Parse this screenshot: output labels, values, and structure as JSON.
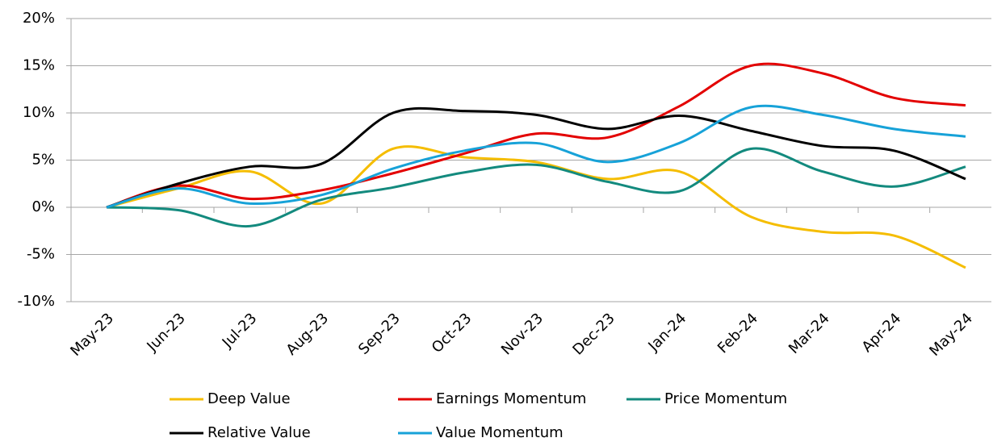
{
  "chart_data": {
    "type": "line",
    "categories": [
      "May-23",
      "Jun-23",
      "Jul-23",
      "Aug-23",
      "Sep-23",
      "Oct-23",
      "Nov-23",
      "Dec-23",
      "Jan-24",
      "Feb-24",
      "Mar-24",
      "Apr-24",
      "May-24"
    ],
    "series": [
      {
        "name": "Deep Value",
        "color": "#f5bd00",
        "values": [
          0,
          2.0,
          3.8,
          0.4,
          6.2,
          5.3,
          4.8,
          3.0,
          3.8,
          -1.0,
          -2.6,
          -3.0,
          -6.4
        ]
      },
      {
        "name": "Earnings Momentum",
        "color": "#e30000",
        "values": [
          0,
          2.3,
          0.9,
          1.8,
          3.6,
          5.7,
          7.8,
          7.4,
          10.7,
          15.0,
          14.2,
          11.6,
          10.8
        ]
      },
      {
        "name": "Price Momentum",
        "color": "#138a7e",
        "values": [
          0,
          -0.3,
          -2.0,
          0.8,
          2.1,
          3.7,
          4.5,
          2.7,
          1.7,
          6.2,
          3.8,
          2.2,
          4.3
        ]
      },
      {
        "name": "Relative Value",
        "color": "#000000",
        "values": [
          0,
          2.5,
          4.3,
          4.6,
          10.0,
          10.2,
          9.8,
          8.3,
          9.7,
          8.1,
          6.5,
          6.0,
          3.0
        ]
      },
      {
        "name": "Value Momentum",
        "color": "#17a2d8",
        "values": [
          0,
          2.0,
          0.4,
          1.3,
          4.1,
          6.0,
          6.8,
          4.8,
          6.8,
          10.6,
          9.8,
          8.3,
          7.5
        ]
      }
    ],
    "ylim": [
      -10,
      20
    ],
    "yticks": [
      {
        "value": -10,
        "label": "-10%"
      },
      {
        "value": -5,
        "label": "-5%"
      },
      {
        "value": 0,
        "label": "0%"
      },
      {
        "value": 5,
        "label": "5%"
      },
      {
        "value": 10,
        "label": "10%"
      },
      {
        "value": 15,
        "label": "15%"
      },
      {
        "value": 20,
        "label": "20%"
      }
    ],
    "grid": true,
    "smooth": true,
    "legend": "bottom"
  }
}
